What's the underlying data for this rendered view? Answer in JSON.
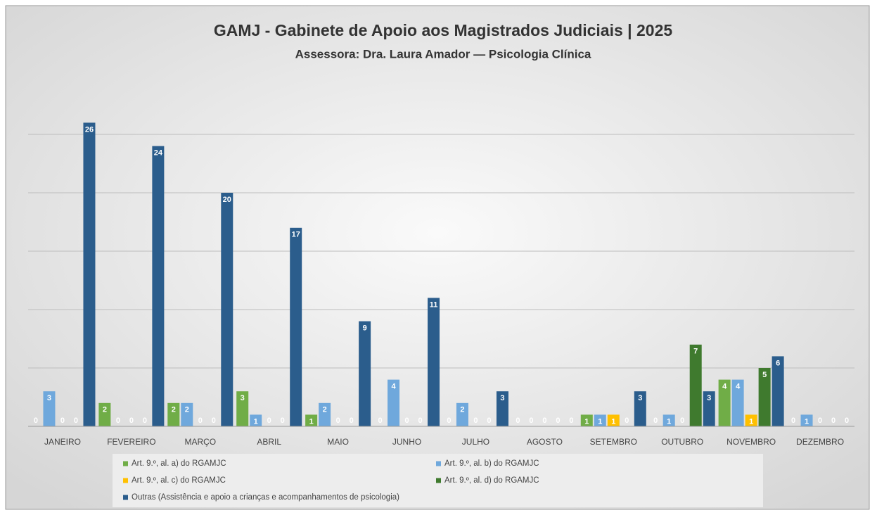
{
  "chart_data": {
    "type": "bar",
    "title": "GAMJ - Gabinete de Apoio aos Magistrados Judiciais | 2025",
    "subtitle": "Assessora: Dra. Laura Amador — Psicologia Clínica",
    "categories": [
      "JANEIRO",
      "FEVEREIRO",
      "MARÇO",
      "ABRIL",
      "MAIO",
      "JUNHO",
      "JULHO",
      "AGOSTO",
      "SETEMBRO",
      "OUTUBRO",
      "NOVEMBRO",
      "DEZEMBRO"
    ],
    "series": [
      {
        "name": "Art. 9.º, al. a) do RGAMJC",
        "color": "#70ad47",
        "values": [
          0,
          2,
          2,
          3,
          1,
          0,
          0,
          0,
          1,
          0,
          4,
          0
        ]
      },
      {
        "name": "Art. 9.º, al. b) do RGAMJC",
        "color": "#6fa8dc",
        "values": [
          3,
          0,
          2,
          1,
          2,
          4,
          2,
          0,
          1,
          1,
          4,
          1
        ]
      },
      {
        "name": "Art. 9.º, al. c) do RGAMJC",
        "color": "#ffc000",
        "values": [
          0,
          0,
          0,
          0,
          0,
          0,
          0,
          0,
          1,
          0,
          1,
          0
        ]
      },
      {
        "name": "Art. 9.º, al. d) do RGAMJC",
        "color": "#3f7a2e",
        "values": [
          0,
          0,
          0,
          0,
          0,
          0,
          0,
          0,
          0,
          7,
          5,
          0
        ]
      },
      {
        "name": "Outras (Assistência e apoio a crianças e acompanhamentos de psicologia)",
        "color": "#2b5d8c",
        "values": [
          26,
          24,
          20,
          17,
          9,
          11,
          3,
          0,
          3,
          3,
          6,
          0
        ]
      }
    ],
    "ylim": [
      0,
      30
    ],
    "yticks": [
      0,
      5,
      10,
      15,
      20,
      25
    ],
    "grid": true
  }
}
